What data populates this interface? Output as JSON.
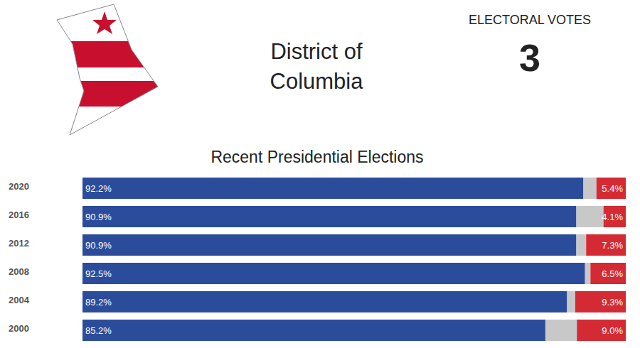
{
  "header": {
    "title": "District of Columbia",
    "electoral_votes_label": "ELECTORAL VOTES",
    "electoral_votes": 3
  },
  "chart_data": {
    "type": "bar",
    "title": "Recent Presidential Elections",
    "orientation": "horizontal",
    "stacked": true,
    "categories": [
      "2020",
      "2016",
      "2012",
      "2008",
      "2004",
      "2000"
    ],
    "xlim": [
      0,
      100
    ],
    "tick_labels": "y",
    "grid": false,
    "series": [
      {
        "color": "#2b4c9b",
        "data_labels": true,
        "values": [
          92.2,
          90.9,
          90.9,
          92.5,
          89.2,
          85.2
        ],
        "value_labels": [
          "92.2%",
          "90.9%",
          "90.9%",
          "92.5%",
          "89.2%",
          "85.2%"
        ]
      },
      {
        "color": "#c8c8c8",
        "data_labels": false,
        "values": [
          2.4,
          5.0,
          1.8,
          1.0,
          1.5,
          5.8
        ]
      },
      {
        "color": "#d42a34",
        "data_labels": true,
        "values": [
          5.4,
          4.1,
          7.3,
          6.5,
          9.3,
          9.0
        ],
        "value_labels": [
          "5.4%",
          "4.1%",
          "7.3%",
          "6.5%",
          "9.3%",
          "9.0%"
        ]
      }
    ]
  }
}
